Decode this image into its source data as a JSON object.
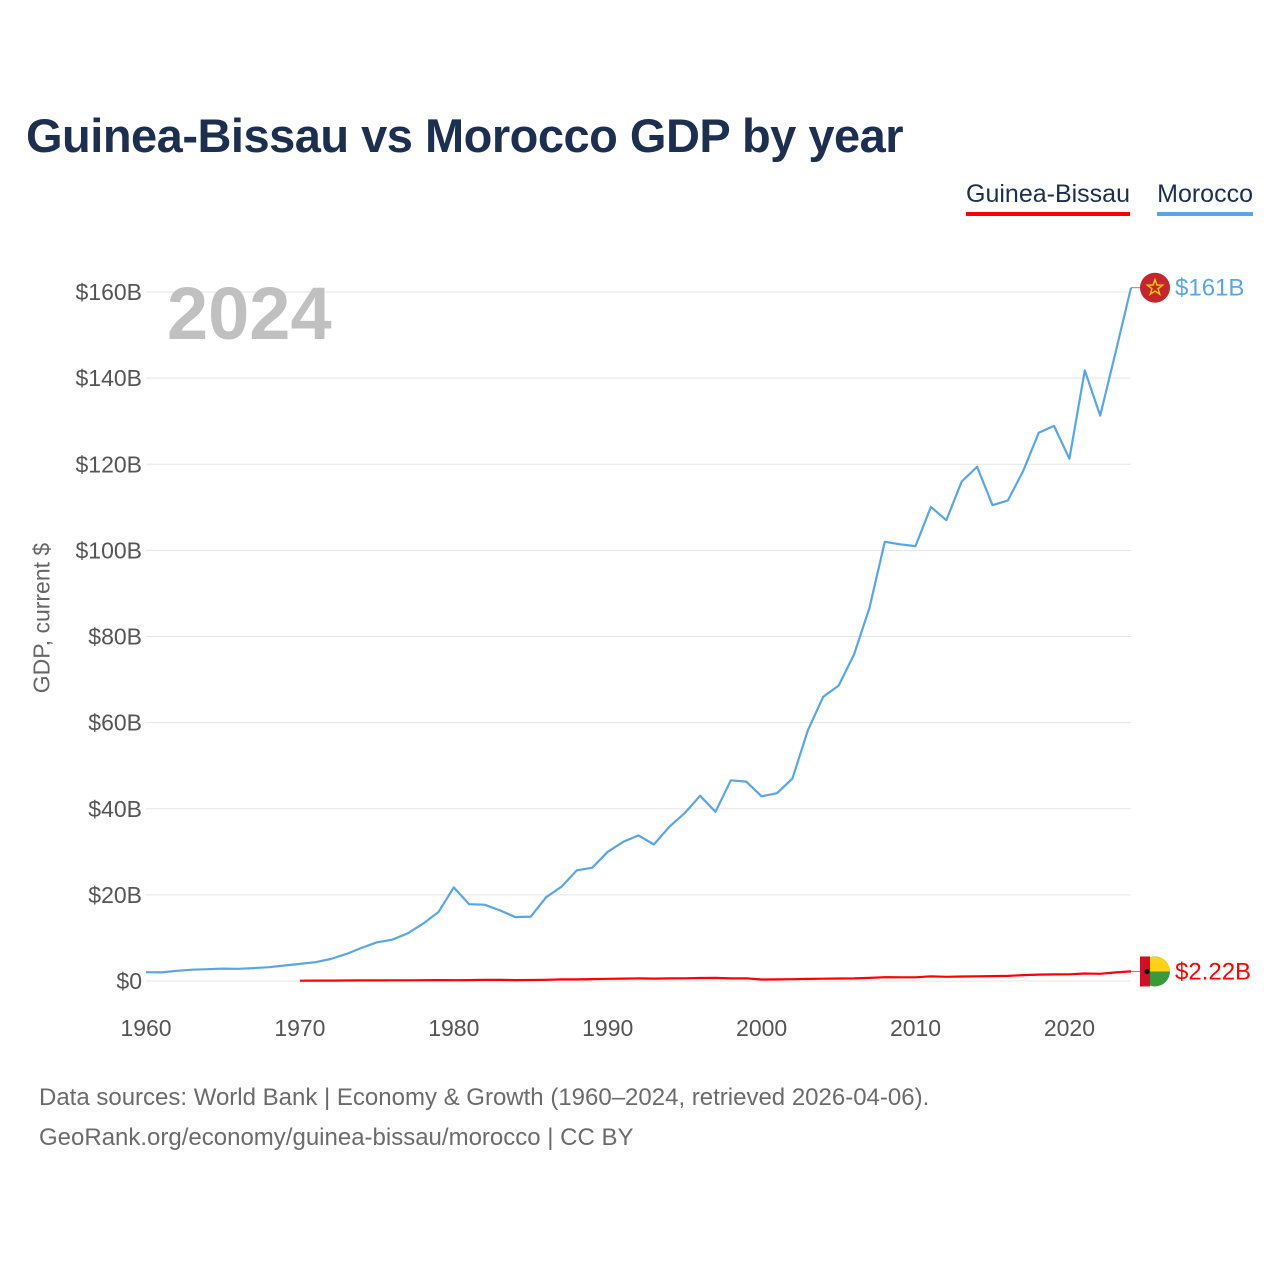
{
  "colors": {
    "title": "#1c2f4e",
    "guinea_bissau": "#ff0000",
    "morocco": "#5aa5e6",
    "grid": "#e5e5e5",
    "axis_text": "#555555",
    "year_watermark": "#c0c0c0"
  },
  "chart_data": {
    "type": "line",
    "title": "Guinea-Bissau vs Morocco GDP by year",
    "xlabel": "",
    "ylabel": "GDP, current $",
    "xlim": [
      1960,
      2024
    ],
    "ylim": [
      0,
      160
    ],
    "x_ticks": [
      1960,
      1970,
      1980,
      1990,
      2000,
      2010,
      2020
    ],
    "x_tick_labels": [
      "1960",
      "1970",
      "1980",
      "1990",
      "2000",
      "2010",
      "2020"
    ],
    "y_ticks": [
      0,
      20,
      40,
      60,
      80,
      100,
      120,
      140,
      160
    ],
    "y_tick_labels": [
      "$0",
      "$20B",
      "$40B",
      "$60B",
      "$80B",
      "$100B",
      "$120B",
      "$140B",
      "$160B"
    ],
    "units": "billions of current US$",
    "year_label": "2024",
    "legend_position": "top-right",
    "series": [
      {
        "name": "Guinea-Bissau",
        "color": "#ff0000",
        "end_label": "$2.22B",
        "x": [
          1970,
          1971,
          1972,
          1973,
          1974,
          1975,
          1976,
          1977,
          1978,
          1979,
          1980,
          1981,
          1982,
          1983,
          1984,
          1985,
          1986,
          1987,
          1988,
          1989,
          1990,
          1991,
          1992,
          1993,
          1994,
          1995,
          1996,
          1997,
          1998,
          1999,
          2000,
          2001,
          2002,
          2003,
          2004,
          2005,
          2006,
          2007,
          2008,
          2009,
          2010,
          2011,
          2012,
          2013,
          2014,
          2015,
          2016,
          2017,
          2018,
          2019,
          2020,
          2021,
          2022,
          2023,
          2024
        ],
        "values": [
          0.08,
          0.09,
          0.1,
          0.12,
          0.14,
          0.15,
          0.16,
          0.17,
          0.19,
          0.2,
          0.18,
          0.22,
          0.27,
          0.25,
          0.22,
          0.23,
          0.28,
          0.36,
          0.38,
          0.45,
          0.52,
          0.56,
          0.6,
          0.56,
          0.6,
          0.63,
          0.69,
          0.72,
          0.6,
          0.63,
          0.34,
          0.36,
          0.42,
          0.48,
          0.53,
          0.59,
          0.6,
          0.72,
          0.88,
          0.85,
          0.85,
          1.1,
          0.98,
          1.05,
          1.1,
          1.13,
          1.18,
          1.38,
          1.48,
          1.53,
          1.55,
          1.75,
          1.68,
          2.0,
          2.22
        ]
      },
      {
        "name": "Morocco",
        "color": "#5aa5e6",
        "end_label": "$161B",
        "x": [
          1960,
          1961,
          1962,
          1963,
          1964,
          1965,
          1966,
          1967,
          1968,
          1969,
          1970,
          1971,
          1972,
          1973,
          1974,
          1975,
          1976,
          1977,
          1978,
          1979,
          1980,
          1981,
          1982,
          1983,
          1984,
          1985,
          1986,
          1987,
          1988,
          1989,
          1990,
          1991,
          1992,
          1993,
          1994,
          1995,
          1996,
          1997,
          1998,
          1999,
          2000,
          2001,
          2002,
          2003,
          2004,
          2005,
          2006,
          2007,
          2008,
          2009,
          2010,
          2011,
          2012,
          2013,
          2014,
          2015,
          2016,
          2017,
          2018,
          2019,
          2020,
          2021,
          2022,
          2023,
          2024
        ],
        "values": [
          2.04,
          2.0,
          2.37,
          2.62,
          2.75,
          2.89,
          2.84,
          3.0,
          3.2,
          3.6,
          3.96,
          4.36,
          5.1,
          6.24,
          7.68,
          8.98,
          9.59,
          11.05,
          13.3,
          16.0,
          21.73,
          17.84,
          17.73,
          16.4,
          14.83,
          14.95,
          19.46,
          21.9,
          25.7,
          26.3,
          30.0,
          32.3,
          33.8,
          31.7,
          35.8,
          39.0,
          43.0,
          39.3,
          46.6,
          46.3,
          42.9,
          43.6,
          47.0,
          58.2,
          66.0,
          68.6,
          75.8,
          86.6,
          102.0,
          101.4,
          101.0,
          110.1,
          107.0,
          116.0,
          119.4,
          110.5,
          111.6,
          118.5,
          127.3,
          128.9,
          121.3,
          141.8,
          131.3,
          146.0,
          161.0
        ]
      }
    ]
  },
  "legend": {
    "guinea_bissau_label": "Guinea-Bissau",
    "morocco_label": "Morocco"
  },
  "flags": {
    "guinea_bissau": "guinea-bissau-flag-icon",
    "morocco": "morocco-flag-icon"
  },
  "footer": {
    "source": "Data sources: World Bank | Economy & Growth (1960–2024, retrieved 2026-04-06).",
    "credit": "GeoRank.org/economy/guinea-bissau/morocco | CC BY"
  }
}
